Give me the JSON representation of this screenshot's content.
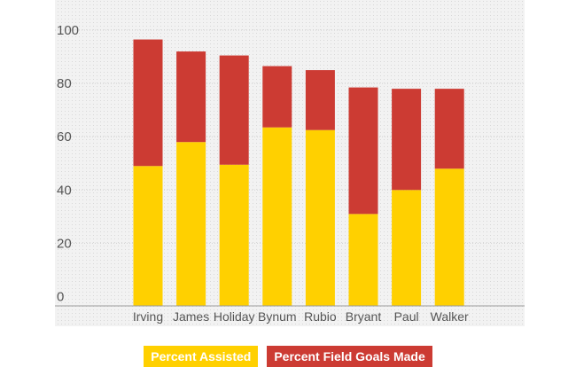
{
  "colors": {
    "assisted": "#FFD000",
    "fg_made": "#CC3B33",
    "plot_bg": "#F2F2F2",
    "dot": "#D8D8D8",
    "grid": "#CFCFCF",
    "axis": "#999999",
    "text": "#555555"
  },
  "chart_data": {
    "type": "bar",
    "stacked": true,
    "categories": [
      "Irving",
      "James",
      "Holiday",
      "Bynum",
      "Rubio",
      "Bryant",
      "Paul",
      "Walker"
    ],
    "series": [
      {
        "name": "Percent Assisted",
        "values": [
          49,
          58,
          49.5,
          63.5,
          62.5,
          31,
          40,
          48
        ]
      },
      {
        "name": "Percent Field Goals Made",
        "values": [
          47.5,
          34,
          41,
          23,
          22.5,
          47.5,
          38,
          30
        ]
      }
    ],
    "yticks": [
      0,
      20,
      40,
      60,
      80,
      100
    ],
    "ylim": [
      -3.5,
      104
    ],
    "grid": true,
    "legend_position": "bottom-center"
  },
  "legend": {
    "assisted": "Percent Assisted",
    "fg_made": "Percent Field Goals Made"
  }
}
